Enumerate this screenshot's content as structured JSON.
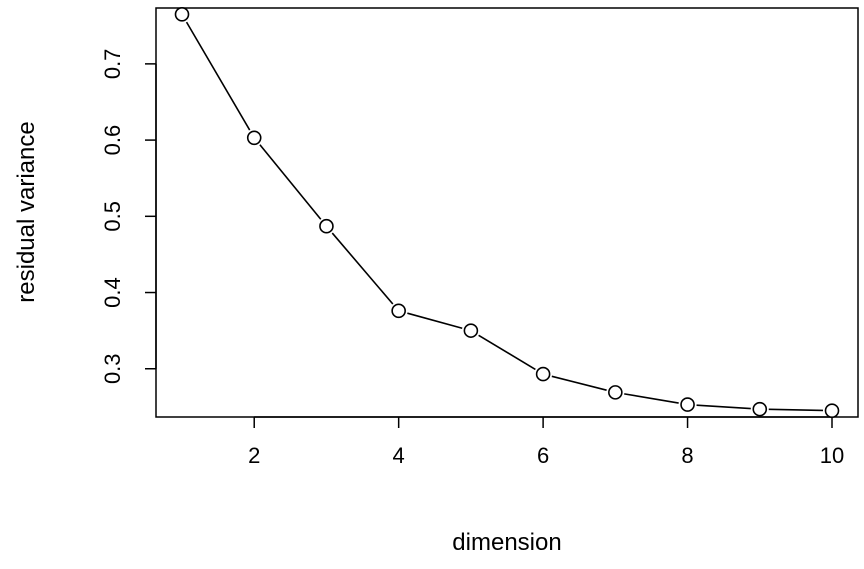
{
  "chart_data": {
    "type": "line",
    "title": "",
    "xlabel": "dimension",
    "ylabel": "residual variance",
    "x": [
      1,
      2,
      3,
      4,
      5,
      6,
      7,
      8,
      9,
      10
    ],
    "series": [
      {
        "values": [
          0.765,
          0.603,
          0.487,
          0.376,
          0.35,
          0.293,
          0.269,
          0.253,
          0.247,
          0.245
        ]
      }
    ],
    "xlim": [
      0.64,
      10.36
    ],
    "ylim": [
      0.2367,
      0.7733
    ],
    "xticks": [
      2,
      4,
      6,
      8,
      10
    ],
    "xtick_labels": [
      "2",
      "4",
      "6",
      "8",
      "10"
    ],
    "yticks": [
      0.3,
      0.4,
      0.5,
      0.6,
      0.7
    ],
    "ytick_labels": [
      "0.3",
      "0.4",
      "0.5",
      "0.6",
      "0.7"
    ],
    "grid": false,
    "legend": "none",
    "markers": "open-circle",
    "colors": {
      "line": "#000000",
      "marker_fill": "#ffffff",
      "axis": "#000000"
    }
  }
}
